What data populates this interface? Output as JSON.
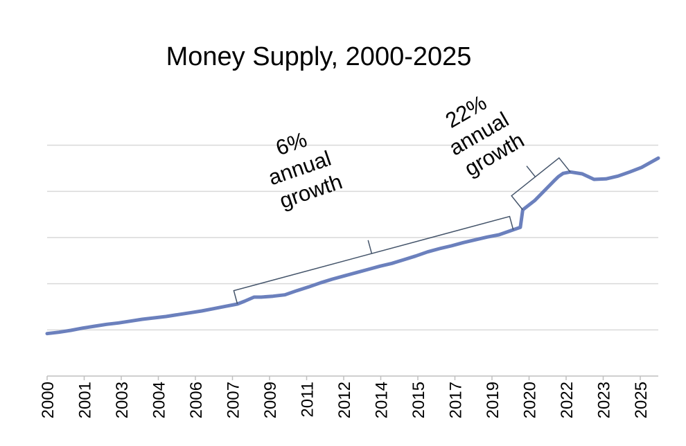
{
  "colors": {
    "series": "#6b80bd",
    "brace": "#44546a"
  },
  "chart_data": {
    "type": "line",
    "title": "Money Supply, 2000-2025",
    "xlabel": "",
    "ylabel": "",
    "x_tick_labels": [
      "2000",
      "2001",
      "2003",
      "2004",
      "2006",
      "2007",
      "2009",
      "2011",
      "2012",
      "2014",
      "2015",
      "2017",
      "2019",
      "2020",
      "2022",
      "2023",
      "2025"
    ],
    "xlim": [
      2000.0,
      2025.7
    ],
    "ylim": [
      0,
      30
    ],
    "y_gridlines": [
      5,
      10,
      15,
      20,
      25
    ],
    "y_tick_labels_shown": false,
    "grid": true,
    "legend": "none",
    "series": [
      {
        "x": [
          2000.0,
          2000.5,
          2001.0,
          2001.5,
          2002.0,
          2002.5,
          2003.0,
          2003.5,
          2004.0,
          2004.5,
          2005.0,
          2005.5,
          2006.0,
          2006.5,
          2007.0,
          2007.5,
          2008.0,
          2008.3,
          2008.7,
          2009.0,
          2009.5,
          2010.0,
          2010.5,
          2011.0,
          2011.5,
          2012.0,
          2012.5,
          2013.0,
          2013.5,
          2014.0,
          2014.5,
          2015.0,
          2015.5,
          2016.0,
          2016.5,
          2017.0,
          2017.5,
          2018.0,
          2018.5,
          2019.0,
          2019.5,
          2019.9,
          2020.0,
          2020.2,
          2020.5,
          2021.0,
          2021.3,
          2021.5,
          2021.7,
          2022.0,
          2022.5,
          2023.0,
          2023.5,
          2024.0,
          2024.5,
          2025.0,
          2025.7
        ],
        "y": [
          4.6,
          4.75,
          4.95,
          5.2,
          5.4,
          5.6,
          5.75,
          5.95,
          6.15,
          6.3,
          6.45,
          6.65,
          6.85,
          7.05,
          7.3,
          7.55,
          7.8,
          8.1,
          8.55,
          8.55,
          8.65,
          8.8,
          9.25,
          9.65,
          10.1,
          10.5,
          10.85,
          11.2,
          11.55,
          11.9,
          12.2,
          12.6,
          13.0,
          13.45,
          13.8,
          14.1,
          14.45,
          14.75,
          15.05,
          15.3,
          15.75,
          16.1,
          18.0,
          18.4,
          19.0,
          20.3,
          21.1,
          21.6,
          21.95,
          22.1,
          21.9,
          21.3,
          21.35,
          21.65,
          22.1,
          22.6,
          23.6
        ]
      }
    ],
    "annotations": [
      {
        "lines": [
          "6%",
          "annual",
          "growth"
        ],
        "from_x": 2008.0,
        "to_x": 2019.6
      },
      {
        "lines": [
          "22%",
          "annual",
          "growth"
        ],
        "from_x": 2020.0,
        "to_x": 2022.0
      }
    ]
  }
}
